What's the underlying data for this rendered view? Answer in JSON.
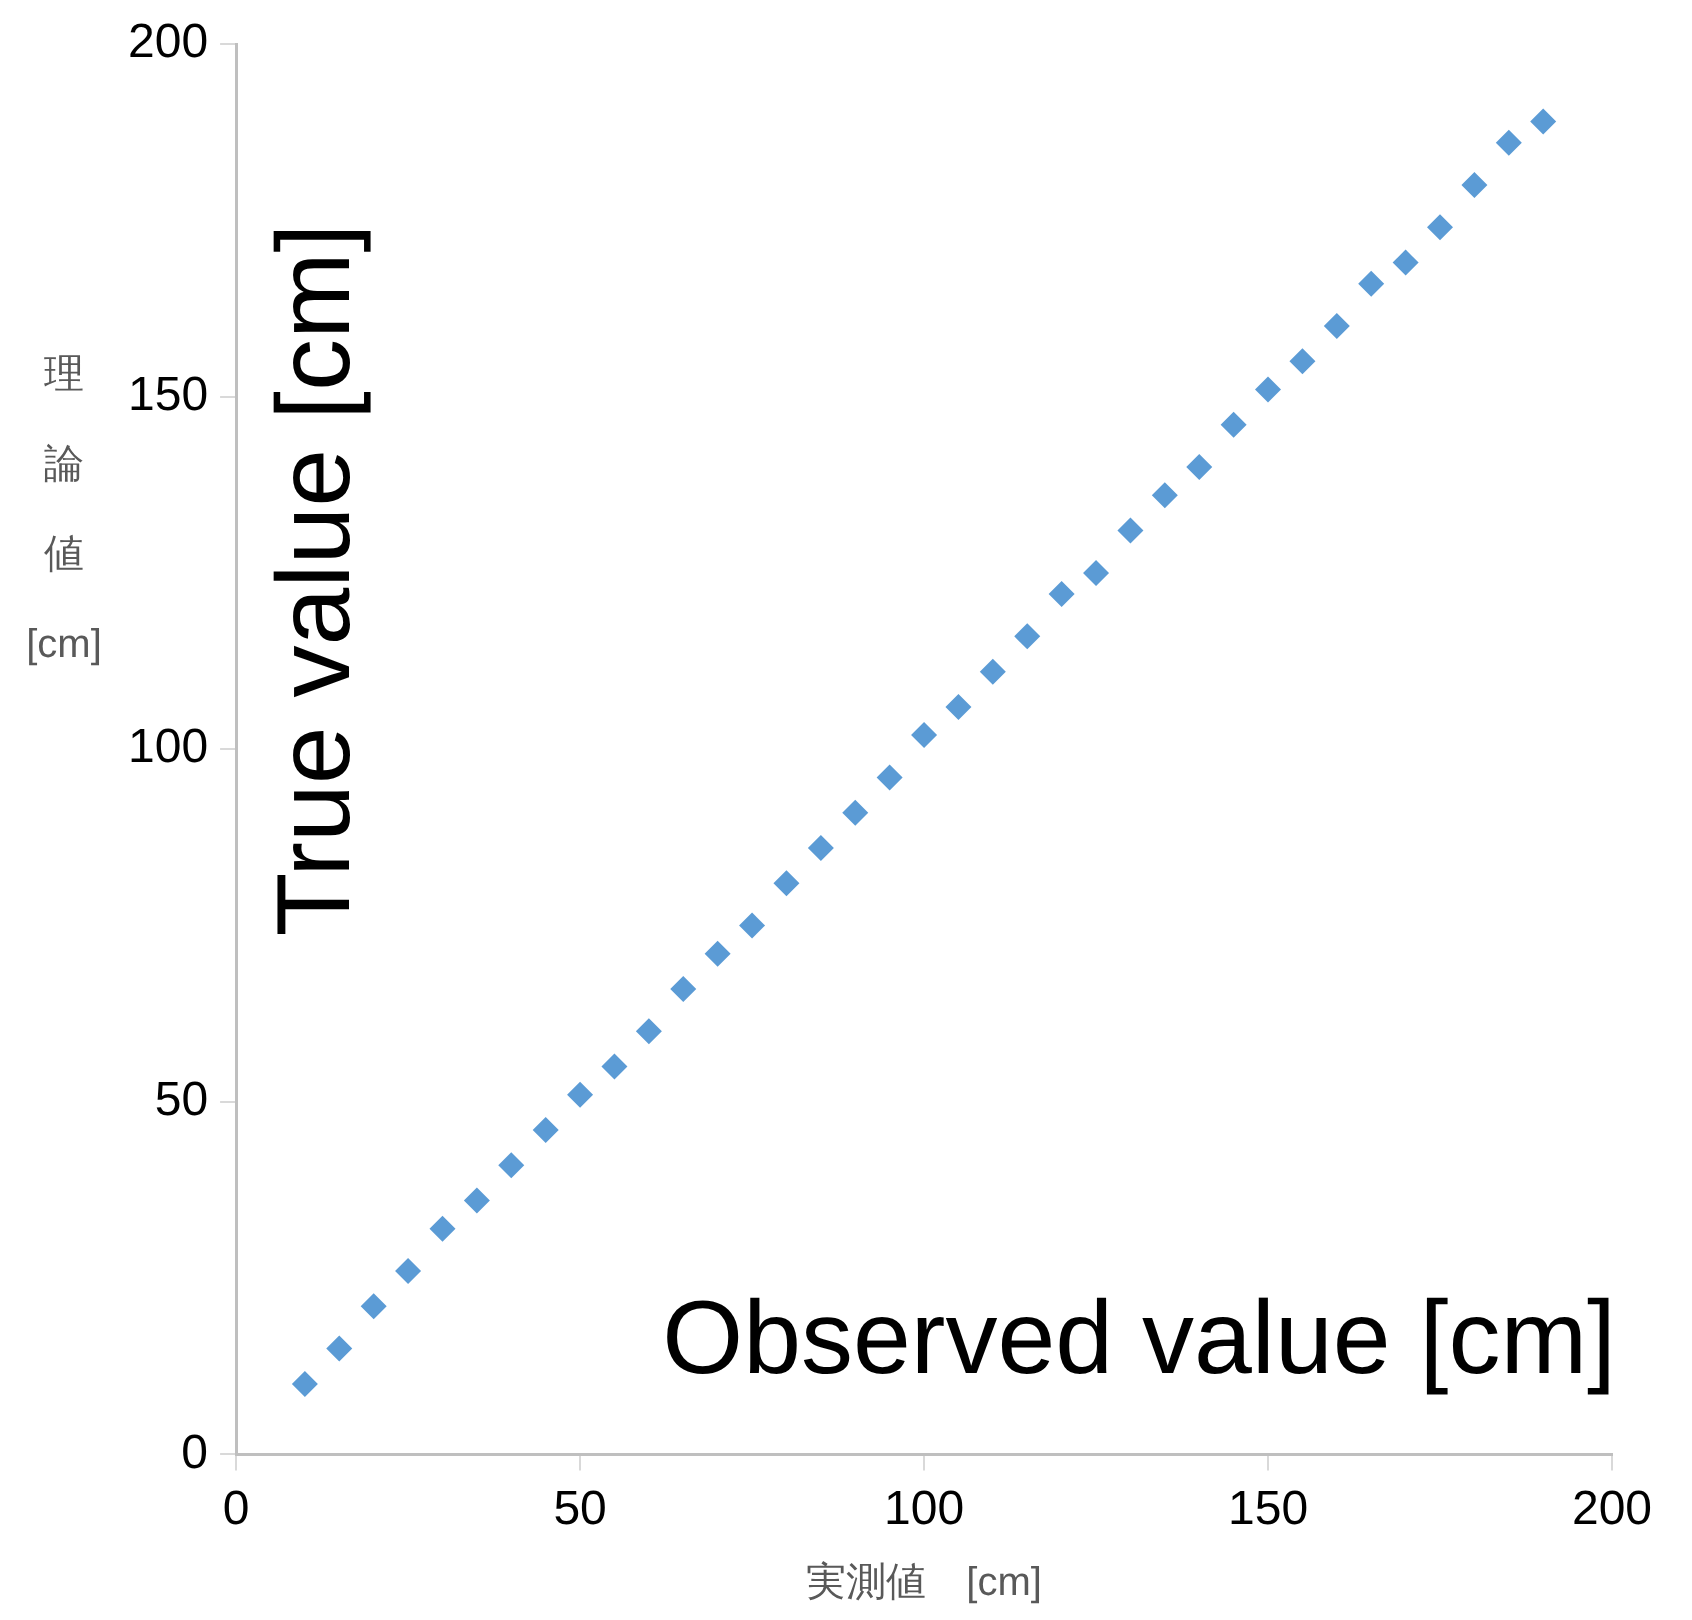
{
  "chart_data": {
    "type": "scatter",
    "xlabel": "実測値　[cm]",
    "ylabel": "理論値 [cm]",
    "annotations": [
      "True value [cm]",
      "Observed value [cm]"
    ],
    "x": [
      10,
      15,
      20,
      25,
      30,
      35,
      40,
      45,
      50,
      55,
      60,
      65,
      70,
      75,
      80,
      85,
      90,
      95,
      100,
      105,
      110,
      115,
      120,
      125,
      130,
      135,
      140,
      145,
      150,
      155,
      160,
      165,
      170,
      175,
      180,
      185,
      190
    ],
    "series": [
      {
        "color": "#5b9bd5",
        "values": [
          10,
          15,
          21,
          26,
          32,
          36,
          41,
          46,
          51,
          55,
          60,
          66,
          71,
          75,
          81,
          86,
          91,
          96,
          102,
          106,
          111,
          116,
          122,
          125,
          131,
          136,
          140,
          146,
          151,
          155,
          160,
          166,
          169,
          174,
          180,
          186,
          189
        ]
      }
    ],
    "xlim": [
      0,
      200
    ],
    "xticks": [
      0,
      50,
      100,
      150,
      200
    ],
    "ylim": [
      0,
      200
    ],
    "yticks": [
      0,
      50,
      100,
      150,
      200
    ],
    "grid": false,
    "legend": false,
    "marker": "diamond"
  }
}
